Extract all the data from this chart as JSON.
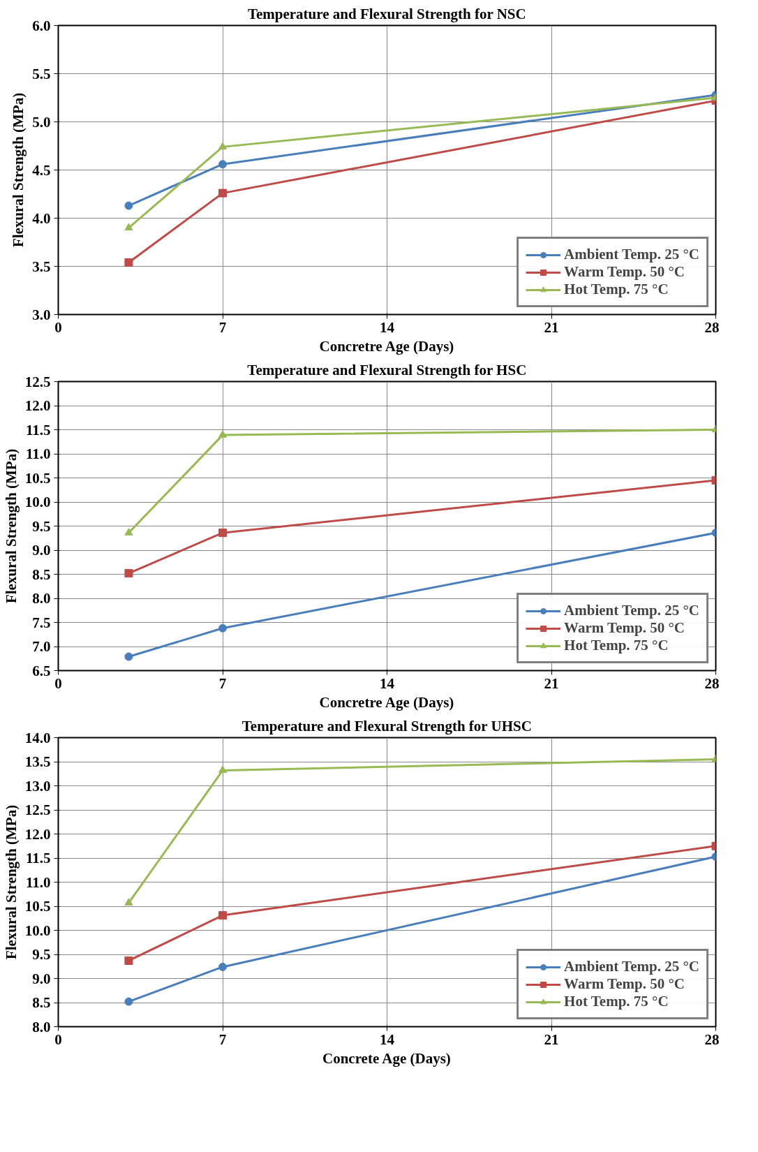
{
  "chart_data": [
    {
      "type": "line",
      "title": "Temperature and Flexural Strength for NSC",
      "xlabel": "Concretre Age (Days)",
      "ylabel": "Flexural Strength (MPa)",
      "x": [
        3,
        7,
        28
      ],
      "xlim": [
        0,
        28
      ],
      "xticks": [
        0,
        7,
        14,
        21,
        28
      ],
      "ylim": [
        3.0,
        6.0
      ],
      "yticks": [
        {
          "value": 3,
          "label": "3.0"
        },
        3.5,
        {
          "value": 4,
          "label": "4.0"
        },
        4.5,
        {
          "value": 5,
          "label": "5.0"
        },
        5.5,
        {
          "value": 6,
          "label": "6.0"
        }
      ],
      "grid": true,
      "legend": "bottom right",
      "series": [
        {
          "name": "Ambient Temp. 25 °C",
          "color": "#4a7ebb",
          "marker": "circle",
          "values": [
            4.13,
            4.56,
            5.28
          ]
        },
        {
          "name": "Warm Temp. 50 °C",
          "color": "#be4b48",
          "marker": "square",
          "values": [
            3.54,
            4.26,
            5.22
          ]
        },
        {
          "name": "Hot Temp. 75 °C",
          "color": "#98b954",
          "marker": "triangle",
          "values": [
            3.9,
            4.74,
            5.25
          ]
        }
      ]
    },
    {
      "type": "line",
      "title": "Temperature and Flexural Strength for HSC",
      "xlabel": "Concretre Age (Days)",
      "ylabel": "Flexural Strength (MPa)",
      "x": [
        3,
        7,
        28
      ],
      "xlim": [
        0,
        28
      ],
      "xticks": [
        0,
        7,
        14,
        21,
        28
      ],
      "ylim": [
        6.5,
        12.5
      ],
      "yticks": [
        6.5,
        {
          "value": 7,
          "label": "7.0"
        },
        7.5,
        {
          "value": 8,
          "label": "8.0"
        },
        8.5,
        {
          "value": 9,
          "label": "9.0"
        },
        9.5,
        {
          "value": 10,
          "label": "10.0"
        },
        10.5,
        {
          "value": 11,
          "label": "11.0"
        },
        11.5,
        {
          "value": 12,
          "label": "12.0"
        },
        12.5
      ],
      "grid": true,
      "legend": "bottom right",
      "series": [
        {
          "name": "Ambient Temp. 25 °C",
          "color": "#4a7ebb",
          "marker": "circle",
          "values": [
            6.79,
            7.38,
            9.36
          ]
        },
        {
          "name": "Warm Temp. 50 °C",
          "color": "#be4b48",
          "marker": "square",
          "values": [
            8.52,
            9.36,
            10.45
          ]
        },
        {
          "name": "Hot Temp. 75 °C",
          "color": "#98b954",
          "marker": "triangle",
          "values": [
            9.36,
            11.39,
            11.5
          ]
        }
      ]
    },
    {
      "type": "line",
      "title": "Temperature and Flexural Strength for UHSC",
      "xlabel": "Concrete Age (Days)",
      "ylabel": "Flexural Strength (MPa)",
      "x": [
        3,
        7,
        28
      ],
      "xlim": [
        0,
        28
      ],
      "xticks": [
        0,
        7,
        14,
        21,
        28
      ],
      "ylim": [
        8.0,
        14.0
      ],
      "yticks": [
        {
          "value": 8,
          "label": "8.0"
        },
        8.5,
        {
          "value": 9,
          "label": "9.0"
        },
        9.5,
        {
          "value": 10,
          "label": "10.0"
        },
        10.5,
        {
          "value": 11,
          "label": "11.0"
        },
        11.5,
        {
          "value": 12,
          "label": "12.0"
        },
        12.5,
        {
          "value": 13,
          "label": "13.0"
        },
        13.5,
        {
          "value": 14,
          "label": "14.0"
        }
      ],
      "grid": true,
      "legend": "bottom right",
      "series": [
        {
          "name": "Ambient Temp. 25 °C",
          "color": "#4a7ebb",
          "marker": "circle",
          "values": [
            8.52,
            9.24,
            11.53
          ]
        },
        {
          "name": "Warm Temp. 50 °C",
          "color": "#be4b48",
          "marker": "square",
          "values": [
            9.37,
            10.31,
            11.75
          ]
        },
        {
          "name": "Hot Temp. 75 °C",
          "color": "#98b954",
          "marker": "triangle",
          "values": [
            10.57,
            13.32,
            13.55
          ]
        }
      ]
    }
  ]
}
